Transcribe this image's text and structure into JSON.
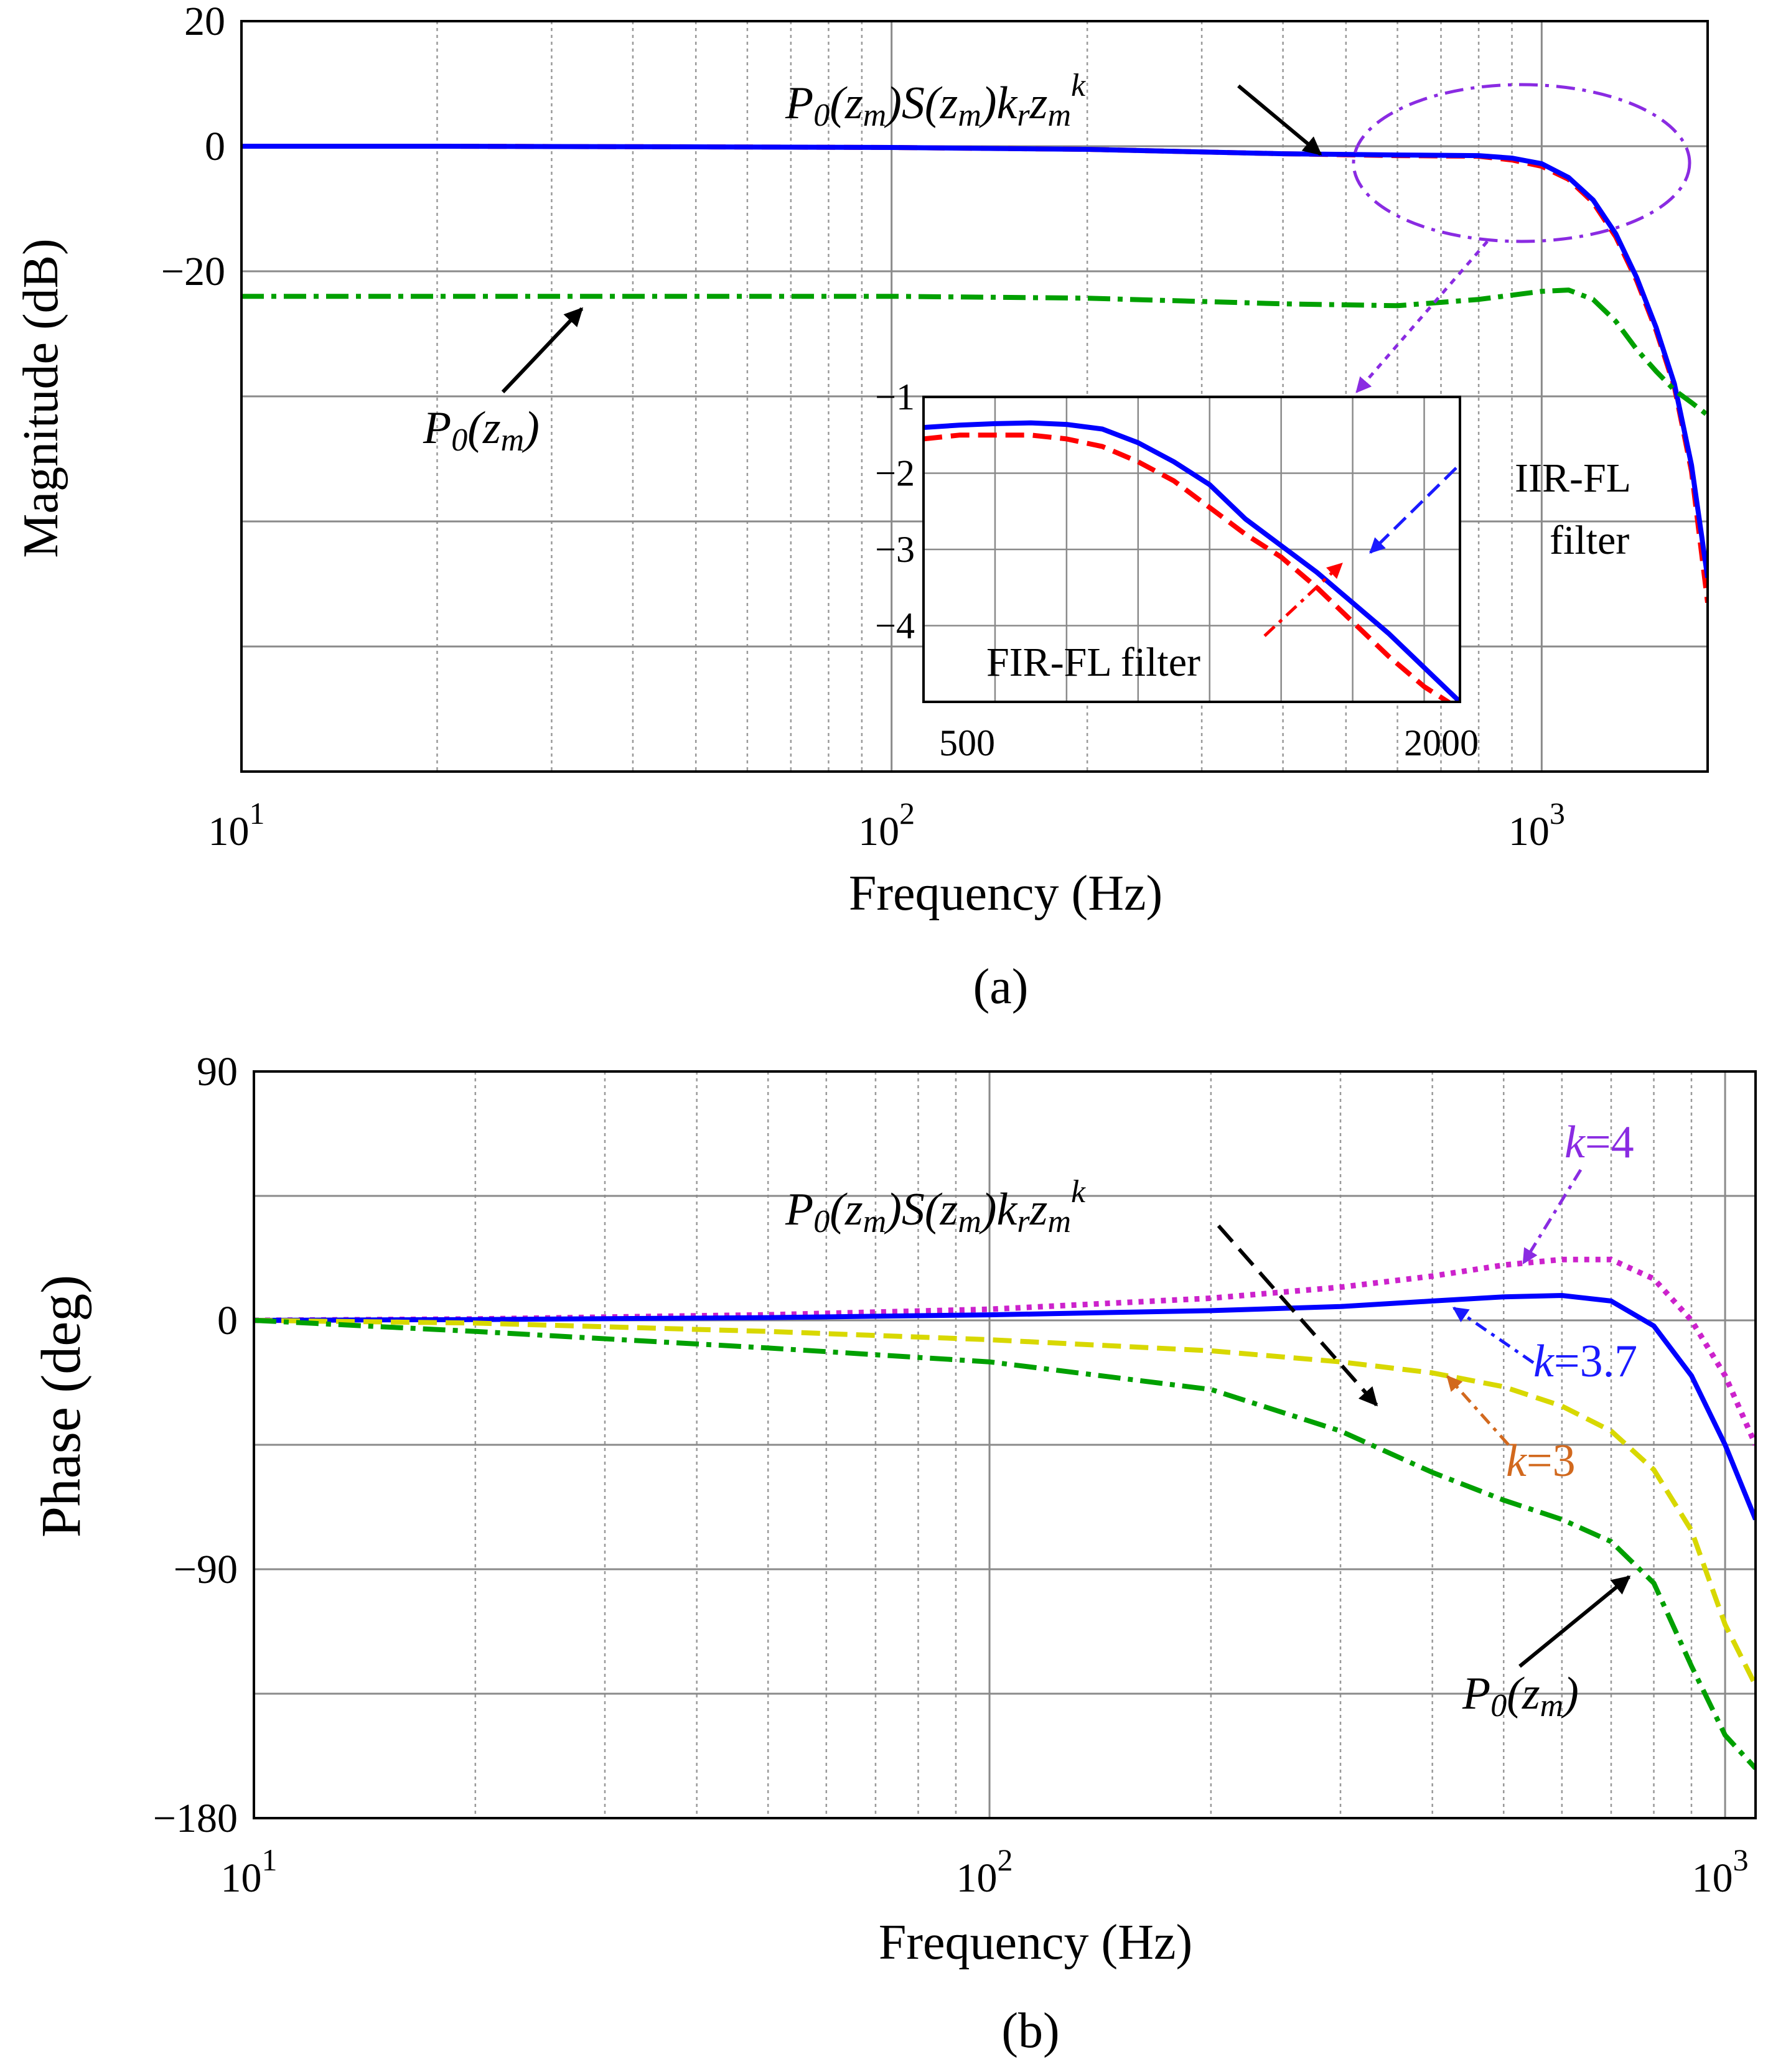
{
  "chart_data": [
    {
      "id": "a",
      "type": "line",
      "xscale": "log",
      "caption": "(a)",
      "xlabel": "Frequency  (Hz)",
      "ylabel": "Magnitude  (dB)",
      "xlim": [
        10,
        1800
      ],
      "ylim": [
        -100,
        20
      ],
      "yticks": [
        20,
        0,
        -20,
        -40,
        -60,
        -80
      ],
      "ytick_labels": [
        "20",
        "0",
        "−20",
        "",
        "",
        ""
      ],
      "xtick_labels": [
        {
          "base": "10",
          "exp": "1"
        },
        {
          "base": "10",
          "exp": "2"
        },
        {
          "base": "10",
          "exp": "3"
        }
      ],
      "series": [
        {
          "name": "FIR-FL filter",
          "color": "#ff0000",
          "dash": "dashed",
          "x": [
            10,
            20,
            50,
            100,
            200,
            400,
            600,
            800,
            900,
            1000,
            1100,
            1200,
            1300,
            1400,
            1500,
            1600,
            1700,
            1800
          ],
          "y": [
            0,
            0,
            -0.1,
            -0.2,
            -0.5,
            -1.2,
            -1.5,
            -1.6,
            -2.2,
            -3.2,
            -5.3,
            -9.0,
            -14.5,
            -21.5,
            -29.5,
            -38.5,
            -52.0,
            -73.0
          ]
        },
        {
          "name": "IIR-FL filter",
          "color": "#0000ff",
          "dash": "solid",
          "x": [
            10,
            20,
            50,
            100,
            200,
            400,
            600,
            800,
            900,
            1000,
            1100,
            1200,
            1300,
            1400,
            1500,
            1600,
            1700,
            1800
          ],
          "y": [
            0,
            0,
            -0.1,
            -0.2,
            -0.5,
            -1.2,
            -1.4,
            -1.5,
            -1.9,
            -2.8,
            -5.0,
            -8.6,
            -14.0,
            -21.0,
            -29.0,
            -38.0,
            -51.0,
            -69.0
          ]
        },
        {
          "name": "P0(zm)",
          "color": "#00a000",
          "dash": "dashdot",
          "x": [
            10,
            20,
            50,
            100,
            200,
            400,
            600,
            800,
            1000,
            1100,
            1200,
            1300,
            1400,
            1500,
            1600,
            1700,
            1800
          ],
          "y": [
            -24,
            -24,
            -24,
            -24,
            -24.3,
            -25.2,
            -25.5,
            -24.5,
            -23.2,
            -23.0,
            -24.5,
            -28.0,
            -32.5,
            -36.0,
            -39.0,
            -41.0,
            -43.0
          ]
        }
      ],
      "annotations": {
        "curve_label": {
          "main": "P",
          "sub0": "0",
          "z1": "(z",
          "sub1": "m",
          "mid": ")S(z",
          "sub2": "m",
          "mid2": ")k",
          "sub3": "r",
          "z3": "z",
          "sub4": "m",
          "sup": "k"
        },
        "p0_label": {
          "main": "P",
          "sub0": "0",
          "z": "(z",
          "sub1": "m",
          "end": ")"
        },
        "iir_label": [
          "IIR-FL",
          "filter"
        ],
        "fir_label": "FIR-FL filter"
      },
      "inset": {
        "xlim": [
          500,
          2000
        ],
        "ylim": [
          -5,
          -1
        ],
        "yticks": [
          -1,
          -2,
          -3,
          -4
        ],
        "ytick_labels": [
          "−1",
          "−2",
          "−3",
          "−4"
        ],
        "xtick_labels": [
          "500",
          "2000"
        ],
        "series": [
          {
            "name": "FIR-FL filter",
            "color": "#ff0000",
            "dash": "dashed",
            "x": [
              500,
              600,
              700,
              800,
              900,
              1000,
              1100,
              1200,
              1300,
              1400,
              1500,
              1600,
              1700,
              1800,
              1900,
              2000
            ],
            "y": [
              -1.55,
              -1.5,
              -1.5,
              -1.5,
              -1.55,
              -1.65,
              -1.85,
              -2.1,
              -2.45,
              -2.8,
              -3.1,
              -3.5,
              -3.95,
              -4.4,
              -4.8,
              -5.1
            ]
          },
          {
            "name": "IIR-FL filter",
            "color": "#0000ff",
            "dash": "solid",
            "x": [
              500,
              600,
              700,
              800,
              900,
              1000,
              1100,
              1200,
              1300,
              1400,
              1500,
              1600,
              1700,
              1800,
              1900,
              2000
            ],
            "y": [
              -1.4,
              -1.37,
              -1.35,
              -1.34,
              -1.36,
              -1.42,
              -1.6,
              -1.85,
              -2.15,
              -2.6,
              -2.95,
              -3.3,
              -3.7,
              -4.1,
              -4.55,
              -5.0
            ]
          }
        ]
      }
    },
    {
      "id": "b",
      "type": "line",
      "xscale": "log",
      "caption": "(b)",
      "xlabel": "Frequency  (Hz)",
      "ylabel": "Phase  (deg)",
      "xlim": [
        10,
        1100
      ],
      "ylim": [
        -180,
        90
      ],
      "yticks": [
        90,
        45,
        0,
        -45,
        -90,
        -135,
        -180
      ],
      "ytick_labels": [
        "90",
        "",
        "0",
        "",
        "−90",
        "",
        "−180"
      ],
      "xtick_labels": [
        {
          "base": "10",
          "exp": "1"
        },
        {
          "base": "10",
          "exp": "2"
        },
        {
          "base": "10",
          "exp": "3"
        }
      ],
      "series": [
        {
          "name": "k=4",
          "color": "#cc22cc",
          "dash": "dotted",
          "x": [
            10,
            20,
            50,
            100,
            200,
            300,
            400,
            500,
            600,
            700,
            800,
            900,
            1000,
            1100
          ],
          "y": [
            0,
            0.5,
            2,
            4,
            8,
            12,
            16,
            20,
            22,
            22,
            15,
            0,
            -20,
            -45
          ]
        },
        {
          "name": "k=3.7",
          "color": "#0000ff",
          "dash": "solid",
          "x": [
            10,
            20,
            50,
            100,
            200,
            300,
            400,
            500,
            600,
            700,
            800,
            900,
            1000,
            1100
          ],
          "y": [
            0,
            0.3,
            1,
            2,
            3.5,
            5,
            7,
            8.5,
            9,
            7,
            -2,
            -20,
            -45,
            -72
          ]
        },
        {
          "name": "k=3",
          "color": "#d8d800",
          "dash": "dashed",
          "x": [
            10,
            20,
            50,
            100,
            200,
            300,
            400,
            500,
            600,
            700,
            800,
            900,
            1000,
            1100
          ],
          "y": [
            0,
            -1,
            -4,
            -7,
            -11,
            -15,
            -19,
            -24,
            -31,
            -40,
            -54,
            -76,
            -110,
            -132
          ]
        },
        {
          "name": "P0(zm)",
          "color": "#00a000",
          "dash": "dashdot",
          "x": [
            10,
            20,
            50,
            100,
            200,
            300,
            400,
            500,
            600,
            700,
            800,
            900,
            1000,
            1100
          ],
          "y": [
            0,
            -4,
            -10,
            -15,
            -25,
            -40,
            -55,
            -65,
            -72,
            -80,
            -95,
            -125,
            -150,
            -162
          ]
        }
      ],
      "annotations": {
        "curve_label": {
          "main": "P",
          "sub0": "0",
          "z1": "(z",
          "sub1": "m",
          "mid": ")S(z",
          "sub2": "m",
          "mid2": ")k",
          "sub3": "r",
          "z3": "z",
          "sub4": "m",
          "sup": "k"
        },
        "p0_label": {
          "main": "P",
          "sub0": "0",
          "z": "(z",
          "sub1": "m",
          "end": ")"
        },
        "k4": {
          "k": "k",
          "rest": "=4",
          "color": "#8a2be2"
        },
        "k37": {
          "k": "k",
          "rest": "=3.7",
          "color": "#1a1aff"
        },
        "k3": {
          "k": "k",
          "rest": "=3",
          "color": "#d2691e"
        }
      }
    }
  ]
}
